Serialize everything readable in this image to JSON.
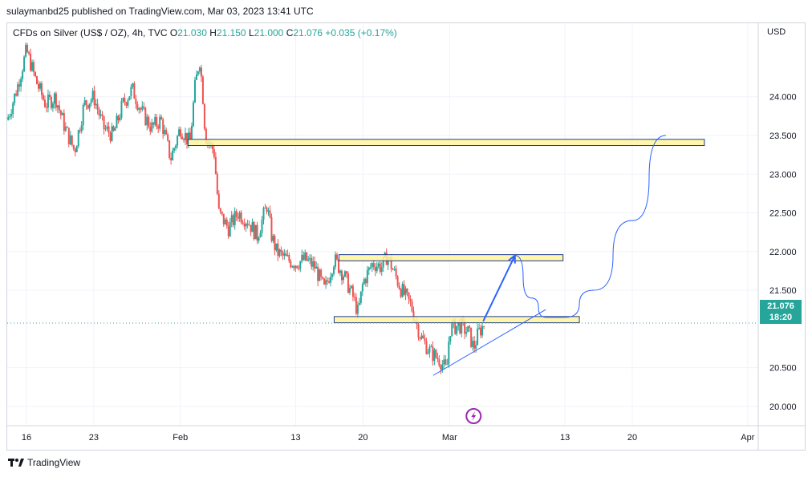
{
  "header": {
    "published": "sulaymanbd25 published on TradingView.com, Mar 03, 2023 13:41 UTC"
  },
  "legend": {
    "symbol": "CFDs on Silver (US$ / OZ), 4h, TVC",
    "o_label": "O",
    "o_value": "21.030",
    "h_label": "H",
    "h_value": "21.150",
    "l_label": "L",
    "l_value": "21.000",
    "c_label": "C",
    "c_value": "21.076",
    "change": "+0.035 (+0.17%)"
  },
  "axis": {
    "currency": "USD"
  },
  "last_price": {
    "value": "21.076",
    "countdown": "18:20"
  },
  "footer": {
    "brand": "TradingView"
  },
  "colors": {
    "up": "#26a69a",
    "down": "#ef5350",
    "zone_fill": "#fff59d",
    "zone_border": "#1e3a8a",
    "drawing": "#2962ff"
  },
  "chart_data": {
    "type": "candlestick",
    "title": "",
    "y_ticks": [
      "24.000",
      "23.500",
      "23.000",
      "22.500",
      "22.000",
      "21.500",
      "20.500",
      "20.000"
    ],
    "ylim": [
      19.75,
      24.95
    ],
    "x_ticks": [
      {
        "label": "16",
        "t": 2
      },
      {
        "label": "23",
        "t": 9
      },
      {
        "label": "Feb",
        "t": 18
      },
      {
        "label": "13",
        "t": 30
      },
      {
        "label": "20",
        "t": 37
      },
      {
        "label": "Mar",
        "t": 46
      },
      {
        "label": "13",
        "t": 58
      },
      {
        "label": "20",
        "t": 65
      },
      {
        "label": "Apr",
        "t": 77
      }
    ],
    "xlim": [
      0,
      78.1
    ],
    "price_path": [
      [
        0,
        23.7
      ],
      [
        1,
        24.1
      ],
      [
        2,
        24.6
      ],
      [
        3,
        24.2
      ],
      [
        4,
        23.9
      ],
      [
        5,
        24.0
      ],
      [
        6,
        23.6
      ],
      [
        7,
        23.3
      ],
      [
        8,
        23.9
      ],
      [
        9,
        24.0
      ],
      [
        10,
        23.6
      ],
      [
        11,
        23.5
      ],
      [
        12,
        23.9
      ],
      [
        13,
        24.1
      ],
      [
        14,
        23.8
      ],
      [
        15,
        23.6
      ],
      [
        16,
        23.7
      ],
      [
        17,
        23.2
      ],
      [
        18,
        23.6
      ],
      [
        19,
        23.4
      ],
      [
        19.5,
        24.1
      ],
      [
        20,
        24.5
      ],
      [
        20.3,
        24.1
      ],
      [
        20.6,
        23.5
      ],
      [
        21,
        23.4
      ],
      [
        21.5,
        23.3
      ],
      [
        22,
        22.5
      ],
      [
        22.5,
        22.4
      ],
      [
        23,
        22.3
      ],
      [
        24,
        22.5
      ],
      [
        25,
        22.4
      ],
      [
        26,
        22.2
      ],
      [
        27,
        22.6
      ],
      [
        27.5,
        22.2
      ],
      [
        28,
        22.0
      ],
      [
        29,
        21.9
      ],
      [
        30,
        21.85
      ],
      [
        31,
        21.9
      ],
      [
        32,
        21.8
      ],
      [
        33,
        21.5
      ],
      [
        34,
        21.9
      ],
      [
        35,
        21.7
      ],
      [
        36,
        21.4
      ],
      [
        36.5,
        21.2
      ],
      [
        37,
        21.6
      ],
      [
        38,
        21.85
      ],
      [
        39,
        21.8
      ],
      [
        39.5,
        21.95
      ],
      [
        40,
        21.8
      ],
      [
        41,
        21.5
      ],
      [
        42,
        21.3
      ],
      [
        43,
        20.9
      ],
      [
        44,
        20.7
      ],
      [
        45,
        20.6
      ],
      [
        45.7,
        20.45
      ],
      [
        46,
        21.0
      ],
      [
        47,
        21.05
      ],
      [
        48,
        20.95
      ],
      [
        48.5,
        20.75
      ],
      [
        49,
        20.95
      ],
      [
        49.7,
        21.08
      ]
    ],
    "zones": [
      {
        "t0": 18.8,
        "t1": 72.5,
        "y0": 23.37,
        "y1": 23.45
      },
      {
        "t0": 34.5,
        "t1": 57.8,
        "y0": 21.88,
        "y1": 21.96
      },
      {
        "t0": 34.0,
        "t1": 59.5,
        "y0": 21.08,
        "y1": 21.16
      }
    ],
    "trendline": [
      [
        44.3,
        20.4
      ],
      [
        56.0,
        21.25
      ]
    ],
    "arrow": [
      [
        49.5,
        21.1
      ],
      [
        52.8,
        21.95
      ]
    ],
    "projection": [
      [
        52.8,
        21.95
      ],
      [
        54.5,
        21.4
      ],
      [
        56.0,
        21.15
      ],
      [
        58.0,
        21.15
      ],
      [
        61.0,
        21.5
      ],
      [
        65.0,
        22.4
      ],
      [
        68.5,
        23.5
      ]
    ],
    "last_price": 21.076,
    "event_marker_t": 48.5
  }
}
